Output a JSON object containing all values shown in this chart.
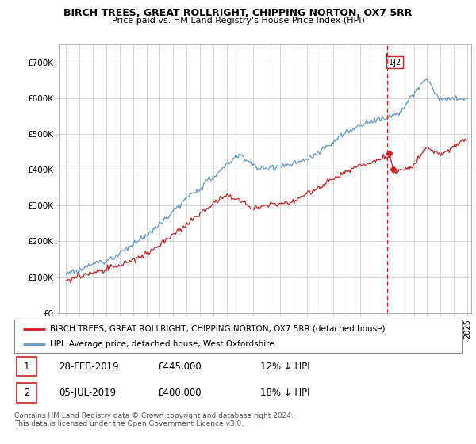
{
  "title": "BIRCH TREES, GREAT ROLLRIGHT, CHIPPING NORTON, OX7 5RR",
  "subtitle": "Price paid vs. HM Land Registry's House Price Index (HPI)",
  "legend_entries": [
    "BIRCH TREES, GREAT ROLLRIGHT, CHIPPING NORTON, OX7 5RR (detached house)",
    "HPI: Average price, detached house, West Oxfordshire"
  ],
  "legend_colors": [
    "#cc0000",
    "#6699cc"
  ],
  "transaction_labels": [
    {
      "num": 1,
      "date": "28-FEB-2019",
      "price": "£445,000",
      "pct": "12% ↓ HPI"
    },
    {
      "num": 2,
      "date": "05-JUL-2019",
      "price": "£400,000",
      "pct": "18% ↓ HPI"
    }
  ],
  "footnote": "Contains HM Land Registry data © Crown copyright and database right 2024.\nThis data is licensed under the Open Government Licence v3.0.",
  "ylim": [
    0,
    750000
  ],
  "yticks": [
    0,
    100000,
    200000,
    300000,
    400000,
    500000,
    600000,
    700000
  ],
  "ytick_labels": [
    "£0",
    "£100K",
    "£200K",
    "£300K",
    "£400K",
    "£500K",
    "£600K",
    "£700K"
  ],
  "hpi_color": "#6699cc",
  "price_color": "#cc2222",
  "marker1_y": 445000,
  "marker2_y": 400000,
  "vline_year": 2019,
  "background_color": "#ffffff",
  "grid_color": "#cccccc",
  "xlim_left": 1995,
  "xlim_right": 2025
}
